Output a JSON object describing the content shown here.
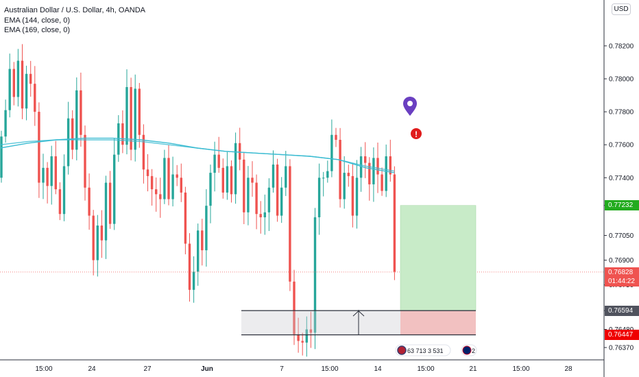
{
  "legend": {
    "title": "Australian Dollar / U.S. Dollar, 4h, OANDA",
    "ema1": "EMA (144, close, 0)",
    "ema2": "EMA (169, close, 0)"
  },
  "currency_button": "USD",
  "price_tags": {
    "target": "0.77232",
    "last_price": "0.76828",
    "countdown": "01:44:22",
    "entry": "0.76594",
    "stop": "0.76447"
  },
  "event_badges": {
    "us_events": "63 713 3 531",
    "au_events": "2"
  },
  "colors": {
    "up": "#26a69a",
    "down": "#ef5350",
    "ema": "#3cbcd2",
    "target_zone": "#c8ebc8",
    "stop_zone": "#f2c1c1",
    "marker": "#6a3fc1"
  },
  "chart_data": {
    "type": "candlestick",
    "symbol": "AUDUSD",
    "timeframe": "4h",
    "x_ticks": [
      "15:00",
      "24",
      "27",
      "Jun",
      "7",
      "15:00",
      "14",
      "15:00",
      "21",
      "15:00",
      "28"
    ],
    "y_ticks": [
      "0.78200",
      "0.78000",
      "0.77800",
      "0.77600",
      "0.77400",
      "0.77232",
      "0.77050",
      "0.76900",
      "0.76750",
      "0.76594",
      "0.76480",
      "0.76370"
    ],
    "y_range": [
      0.7633,
      0.7841
    ],
    "candle_count": 95,
    "opens": [
      0.774,
      0.7765,
      0.7781,
      0.7806,
      0.7789,
      0.7811,
      0.7782,
      0.7803,
      0.7797,
      0.778,
      0.7737,
      0.7746,
      0.7735,
      0.7753,
      0.7733,
      0.7718,
      0.7747,
      0.7776,
      0.7757,
      0.7793,
      0.7766,
      0.7734,
      0.7717,
      0.769,
      0.7711,
      0.7702,
      0.7737,
      0.7712,
      0.7754,
      0.7773,
      0.776,
      0.7795,
      0.7757,
      0.7794,
      0.7766,
      0.7745,
      0.7741,
      0.7733,
      0.773,
      0.7727,
      0.7752,
      0.7727,
      0.7742,
      0.774,
      0.7731,
      0.77,
      0.7672,
      0.7683,
      0.7708,
      0.7696,
      0.7723,
      0.7743,
      0.7754,
      0.7746,
      0.7731,
      0.7747,
      0.773,
      0.7761,
      0.7751,
      0.7719,
      0.774,
      0.7737,
      0.7718,
      0.7716,
      0.7719,
      0.7734,
      0.7748,
      0.7717,
      0.7734,
      0.7747,
      0.7677,
      0.7645,
      0.7641,
      0.764,
      0.7648,
      0.7646,
      0.7716,
      0.774,
      0.774,
      0.7744,
      0.7766,
      0.7763,
      0.7727,
      0.7743,
      0.7741,
      0.7717,
      0.774,
      0.7753,
      0.7749,
      0.7736,
      0.7752,
      0.7742,
      0.7732,
      0.7753,
      0.7742
    ],
    "closes": [
      0.7765,
      0.7781,
      0.7806,
      0.7789,
      0.7811,
      0.7782,
      0.7803,
      0.7797,
      0.778,
      0.7737,
      0.7746,
      0.7735,
      0.7753,
      0.7733,
      0.7718,
      0.7747,
      0.7776,
      0.7757,
      0.7793,
      0.7766,
      0.7734,
      0.7717,
      0.769,
      0.7711,
      0.7702,
      0.7737,
      0.7712,
      0.7754,
      0.7773,
      0.776,
      0.7795,
      0.7757,
      0.7794,
      0.7766,
      0.7745,
      0.7741,
      0.7733,
      0.773,
      0.7727,
      0.7752,
      0.7727,
      0.7742,
      0.774,
      0.7731,
      0.77,
      0.7672,
      0.7683,
      0.7708,
      0.7696,
      0.7723,
      0.7743,
      0.7754,
      0.7746,
      0.7731,
      0.7747,
      0.773,
      0.7761,
      0.7751,
      0.7719,
      0.774,
      0.7737,
      0.7718,
      0.7716,
      0.7719,
      0.7734,
      0.7748,
      0.7717,
      0.7734,
      0.7747,
      0.7677,
      0.7645,
      0.7641,
      0.764,
      0.7648,
      0.7646,
      0.7716,
      0.774,
      0.774,
      0.7744,
      0.7766,
      0.7763,
      0.7727,
      0.7743,
      0.7741,
      0.7717,
      0.774,
      0.7753,
      0.7749,
      0.7736,
      0.7752,
      0.7742,
      0.7732,
      0.7753,
      0.7742,
      0.7683
    ],
    "ema_144": [
      0.7758,
      0.7761,
      0.7763,
      0.7764,
      0.7764,
      0.7763,
      0.7761,
      0.7758,
      0.7756,
      0.7755,
      0.7754,
      0.7753,
      0.7751,
      0.7746,
      0.7743
    ],
    "ema_169": [
      0.776,
      0.7762,
      0.7763,
      0.7763,
      0.7763,
      0.7762,
      0.776,
      0.7758,
      0.7756,
      0.7755,
      0.7754,
      0.7753,
      0.7751,
      0.7747,
      0.7744
    ],
    "last_price": 0.76828,
    "long_position": {
      "entry": 0.76594,
      "target": 0.77232,
      "stop": 0.76447
    },
    "range_box": {
      "top": 0.76594,
      "bottom": 0.76447
    }
  }
}
